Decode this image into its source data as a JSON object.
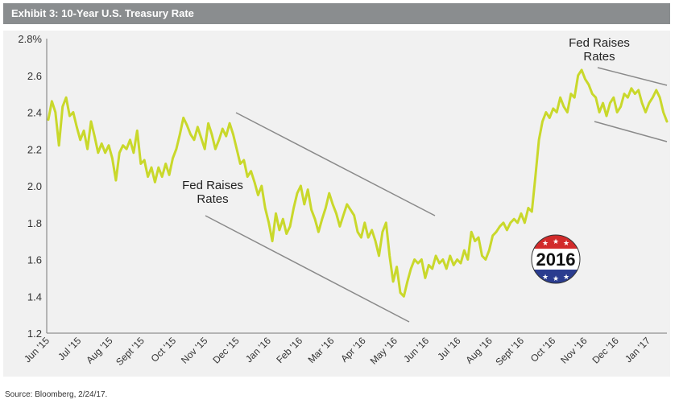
{
  "header": {
    "title": "Exhibit 3: 10-Year U.S. Treasury Rate"
  },
  "footer": {
    "source": "Source: Bloomberg, 2/24/17."
  },
  "chart_data": {
    "type": "line",
    "title": "Exhibit 3: 10-Year U.S. Treasury Rate",
    "xlabel": "",
    "ylabel": "",
    "ylim": [
      1.2,
      2.8
    ],
    "yticks": [
      "2.8%",
      "2.6",
      "2.4",
      "2.2",
      "2.0",
      "1.8",
      "1.6",
      "1.4",
      "1.2"
    ],
    "ytick_values": [
      2.8,
      2.6,
      2.4,
      2.2,
      2.0,
      1.8,
      1.6,
      1.4,
      1.2
    ],
    "xticks": [
      "Jun '15",
      "Jul '15",
      "Aug '15",
      "Sept '15",
      "Oct '15",
      "Nov '15",
      "Dec '15",
      "Jan '16",
      "Feb '16",
      "Mar '16",
      "Apr '16",
      "May '16",
      "Jun '16",
      "Jul '16",
      "Aug '16",
      "Sept '16",
      "Oct '16",
      "Nov '16",
      "Dec '16",
      "Jan '17"
    ],
    "grid": false,
    "line_color": "#c9d82b",
    "series": [
      {
        "values": [
          2.36,
          2.46,
          2.4,
          2.22,
          2.43,
          2.48,
          2.38,
          2.4,
          2.32,
          2.25,
          2.3,
          2.2,
          2.35,
          2.27,
          2.18,
          2.23,
          2.18,
          2.22,
          2.15,
          2.03,
          2.18,
          2.22,
          2.2,
          2.25,
          2.18,
          2.3,
          2.12,
          2.14,
          2.05,
          2.1,
          2.02,
          2.1,
          2.05,
          2.12,
          2.06,
          2.15,
          2.2,
          2.28,
          2.37,
          2.33,
          2.28,
          2.25,
          2.32,
          2.26,
          2.2,
          2.34,
          2.28,
          2.2,
          2.25,
          2.31,
          2.27,
          2.34,
          2.28,
          2.2,
          2.12,
          2.14,
          2.05,
          2.08,
          2.02,
          1.95,
          2.0,
          1.88,
          1.8,
          1.7,
          1.85,
          1.76,
          1.82,
          1.74,
          1.78,
          1.88,
          1.96,
          2.0,
          1.9,
          1.98,
          1.87,
          1.82,
          1.75,
          1.82,
          1.88,
          1.96,
          1.9,
          1.85,
          1.78,
          1.84,
          1.9,
          1.87,
          1.84,
          1.75,
          1.72,
          1.8,
          1.72,
          1.76,
          1.7,
          1.62,
          1.75,
          1.8,
          1.62,
          1.48,
          1.56,
          1.42,
          1.4,
          1.48,
          1.55,
          1.6,
          1.58,
          1.6,
          1.5,
          1.57,
          1.55,
          1.62,
          1.58,
          1.6,
          1.55,
          1.62,
          1.57,
          1.6,
          1.58,
          1.65,
          1.6,
          1.75,
          1.7,
          1.72,
          1.62,
          1.6,
          1.65,
          1.73,
          1.75,
          1.78,
          1.8,
          1.76,
          1.8,
          1.82,
          1.8,
          1.85,
          1.8,
          1.88,
          1.86,
          2.05,
          2.25,
          2.35,
          2.4,
          2.37,
          2.42,
          2.4,
          2.48,
          2.43,
          2.4,
          2.5,
          2.48,
          2.6,
          2.63,
          2.58,
          2.55,
          2.5,
          2.48,
          2.4,
          2.45,
          2.38,
          2.45,
          2.48,
          2.4,
          2.43,
          2.5,
          2.48,
          2.53,
          2.5,
          2.52,
          2.45,
          2.4,
          2.45,
          2.48,
          2.52,
          2.48,
          2.4,
          2.35
        ]
      }
    ],
    "annotations": [
      {
        "text_lines": [
          "Fed Raises",
          "Rates"
        ]
      },
      {
        "text_lines": [
          "Fed Raises",
          "Rates"
        ]
      }
    ],
    "badge": {
      "text": "2016",
      "top_color": "#d22b2b",
      "bottom_color": "#2a3c8f"
    }
  }
}
